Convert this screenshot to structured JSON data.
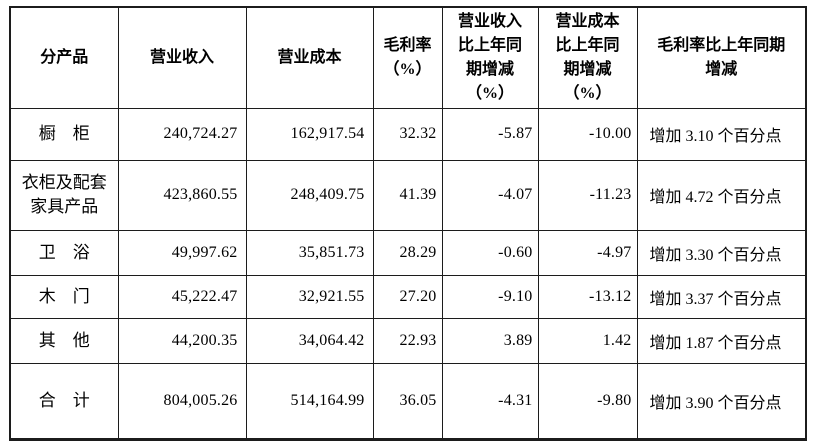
{
  "colors": {
    "text": "#000000",
    "border": "#1c1c1c",
    "background": "#ffffff"
  },
  "table": {
    "headers": [
      "分产品",
      "营业收入",
      "营业成本",
      "毛利率\n（%）",
      "营业收入\n比上年同\n期增减\n（%）",
      "营业成本\n比上年同\n期增减\n（%）",
      "毛利率比上年同期\n增减"
    ],
    "rows": [
      {
        "product": "橱　柜",
        "revenue": "240,724.27",
        "cost": "162,917.54",
        "gross_margin_pct": "32.32",
        "revenue_yoy_pct": "-5.87",
        "cost_yoy_pct": "-10.00",
        "gross_margin_yoy": "增加 3.10 个百分点"
      },
      {
        "product": "衣柜及配套\n家具产品",
        "revenue": "423,860.55",
        "cost": "248,409.75",
        "gross_margin_pct": "41.39",
        "revenue_yoy_pct": "-4.07",
        "cost_yoy_pct": "-11.23",
        "gross_margin_yoy": "增加 4.72 个百分点"
      },
      {
        "product": "卫　浴",
        "revenue": "49,997.62",
        "cost": "35,851.73",
        "gross_margin_pct": "28.29",
        "revenue_yoy_pct": "-0.60",
        "cost_yoy_pct": "-4.97",
        "gross_margin_yoy": "增加 3.30 个百分点"
      },
      {
        "product": "木　门",
        "revenue": "45,222.47",
        "cost": "32,921.55",
        "gross_margin_pct": "27.20",
        "revenue_yoy_pct": "-9.10",
        "cost_yoy_pct": "-13.12",
        "gross_margin_yoy": "增加 3.37 个百分点"
      },
      {
        "product": "其　他",
        "revenue": "44,200.35",
        "cost": "34,064.42",
        "gross_margin_pct": "22.93",
        "revenue_yoy_pct": "3.89",
        "cost_yoy_pct": "1.42",
        "gross_margin_yoy": "增加 1.87 个百分点"
      },
      {
        "product": "合　计",
        "revenue": "804,005.26",
        "cost": "514,164.99",
        "gross_margin_pct": "36.05",
        "revenue_yoy_pct": "-4.31",
        "cost_yoy_pct": "-9.80",
        "gross_margin_yoy": "增加 3.90 个百分点"
      }
    ]
  }
}
